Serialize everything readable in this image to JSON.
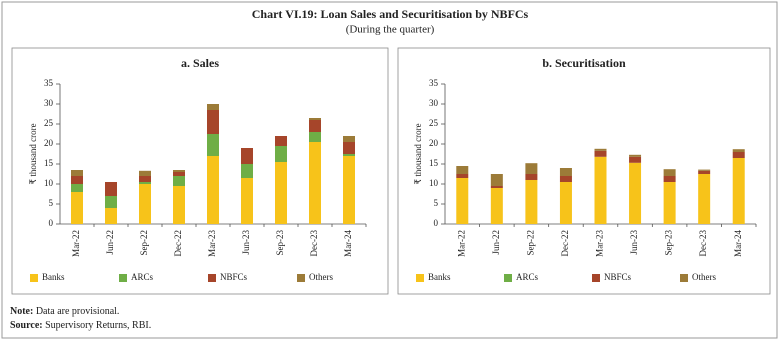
{
  "title": "Chart VI.19: Loan Sales and Securitisation by NBFCs",
  "subtitle": "(During the quarter)",
  "chart_data": [
    {
      "type": "bar",
      "stacked": true,
      "title": "a. Sales",
      "y_label": "₹ thousand crore",
      "categories": [
        "Mar-22",
        "Jun-22",
        "Sep-22",
        "Dec-22",
        "Mar-23",
        "Jun-23",
        "Sep-23",
        "Dec-23",
        "Mar-24"
      ],
      "series": [
        {
          "name": "Banks",
          "color": "#f7c31a",
          "values": [
            8,
            4,
            10,
            9.5,
            17,
            11.5,
            15.5,
            20.5,
            17
          ]
        },
        {
          "name": "ARCs",
          "color": "#6fae46",
          "values": [
            2,
            3,
            0.5,
            2.5,
            5.5,
            3.5,
            4,
            2.5,
            0.5
          ]
        },
        {
          "name": "NBFCs",
          "color": "#a6452a",
          "values": [
            2,
            3.5,
            1.5,
            1,
            6,
            4,
            2.5,
            3,
            3
          ]
        },
        {
          "name": "Others",
          "color": "#9c7b38",
          "values": [
            1.5,
            0,
            1.3,
            0.5,
            1.5,
            0,
            0,
            0.5,
            1.5
          ]
        }
      ],
      "ylim": [
        0,
        35
      ],
      "yticks": [
        0,
        5,
        10,
        15,
        20,
        25,
        30,
        35
      ]
    },
    {
      "type": "bar",
      "stacked": true,
      "title": "b. Securitisation",
      "y_label": "₹ thousand crore",
      "categories": [
        "Mar-22",
        "Jun-22",
        "Sep-22",
        "Dec-22",
        "Mar-23",
        "Jun-23",
        "Sep-23",
        "Dec-23",
        "Mar-24"
      ],
      "series": [
        {
          "name": "Banks",
          "color": "#f7c31a",
          "values": [
            11.5,
            9,
            11,
            10.5,
            16.8,
            15.3,
            10.5,
            12.5,
            16.5
          ]
        },
        {
          "name": "ARCs",
          "color": "#6fae46",
          "values": [
            0,
            0,
            0,
            0,
            0,
            0,
            0,
            0,
            0
          ]
        },
        {
          "name": "NBFCs",
          "color": "#a6452a",
          "values": [
            1,
            0.5,
            1.5,
            1.5,
            1.5,
            1.5,
            1.5,
            0.8,
            1.5
          ]
        },
        {
          "name": "Others",
          "color": "#9c7b38",
          "values": [
            2,
            3,
            2.7,
            2,
            0.5,
            0.5,
            1.7,
            0.3,
            0.7
          ]
        }
      ],
      "ylim": [
        0,
        35
      ],
      "yticks": [
        0,
        5,
        10,
        15,
        20,
        25,
        30,
        35
      ]
    }
  ],
  "notes": [
    {
      "label": "Note:",
      "text": "Data are provisional."
    },
    {
      "label": "Source:",
      "text": "Supervisory Returns, RBI."
    }
  ]
}
